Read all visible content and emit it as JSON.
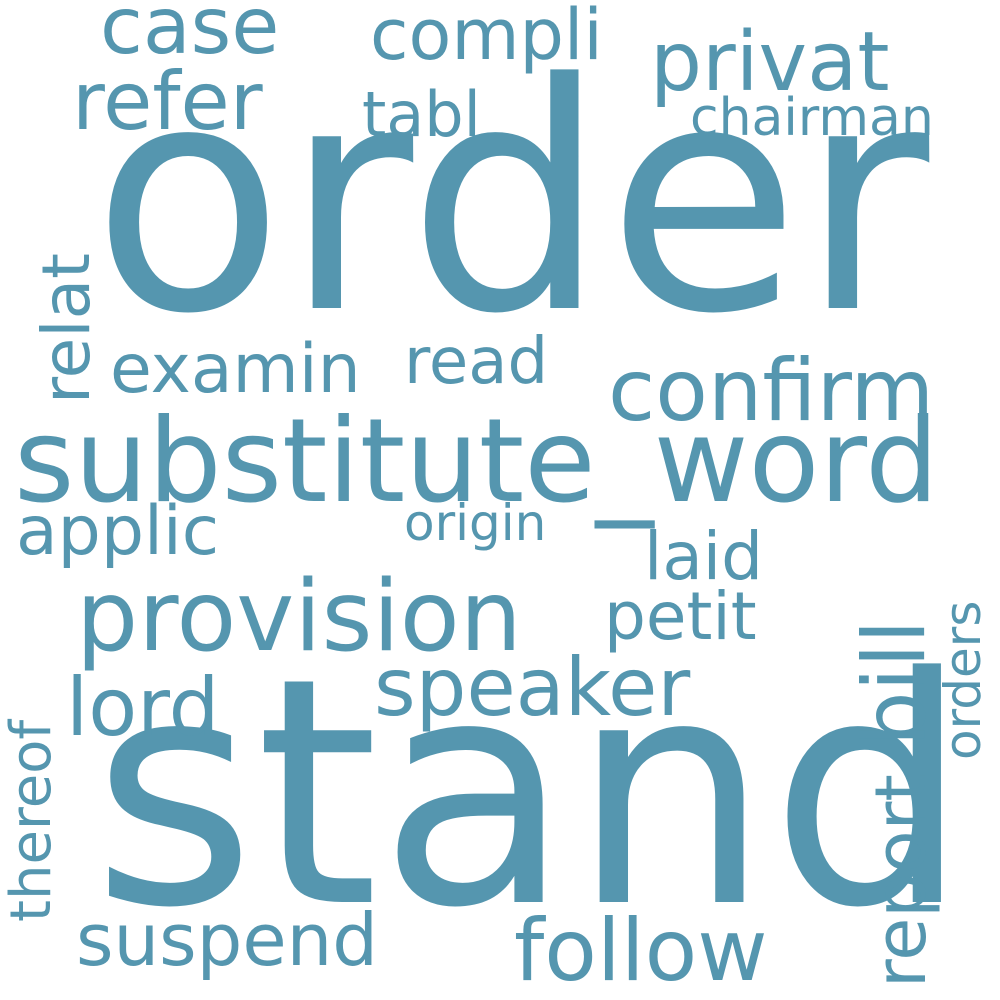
{
  "color": "#5596af",
  "words": {
    "order": "order",
    "stand": "stand",
    "substitute_word": "substitute_word",
    "provision": "provision",
    "confirm": "confirm",
    "follow": "follow",
    "speaker": "speaker",
    "privat": "privat",
    "refer": "refer",
    "case": "case",
    "compli": "compli",
    "examin": "examin",
    "lord": "lord",
    "suspend": "suspend",
    "bill": "bill",
    "report": "report",
    "applic": "applic",
    "petit": "petit",
    "laid": "laid",
    "read": "read",
    "relat": "relat",
    "tabl": "tabl",
    "chairman": "chairman",
    "origin": "origin",
    "orders": "orders",
    "thereof": "thereof"
  }
}
